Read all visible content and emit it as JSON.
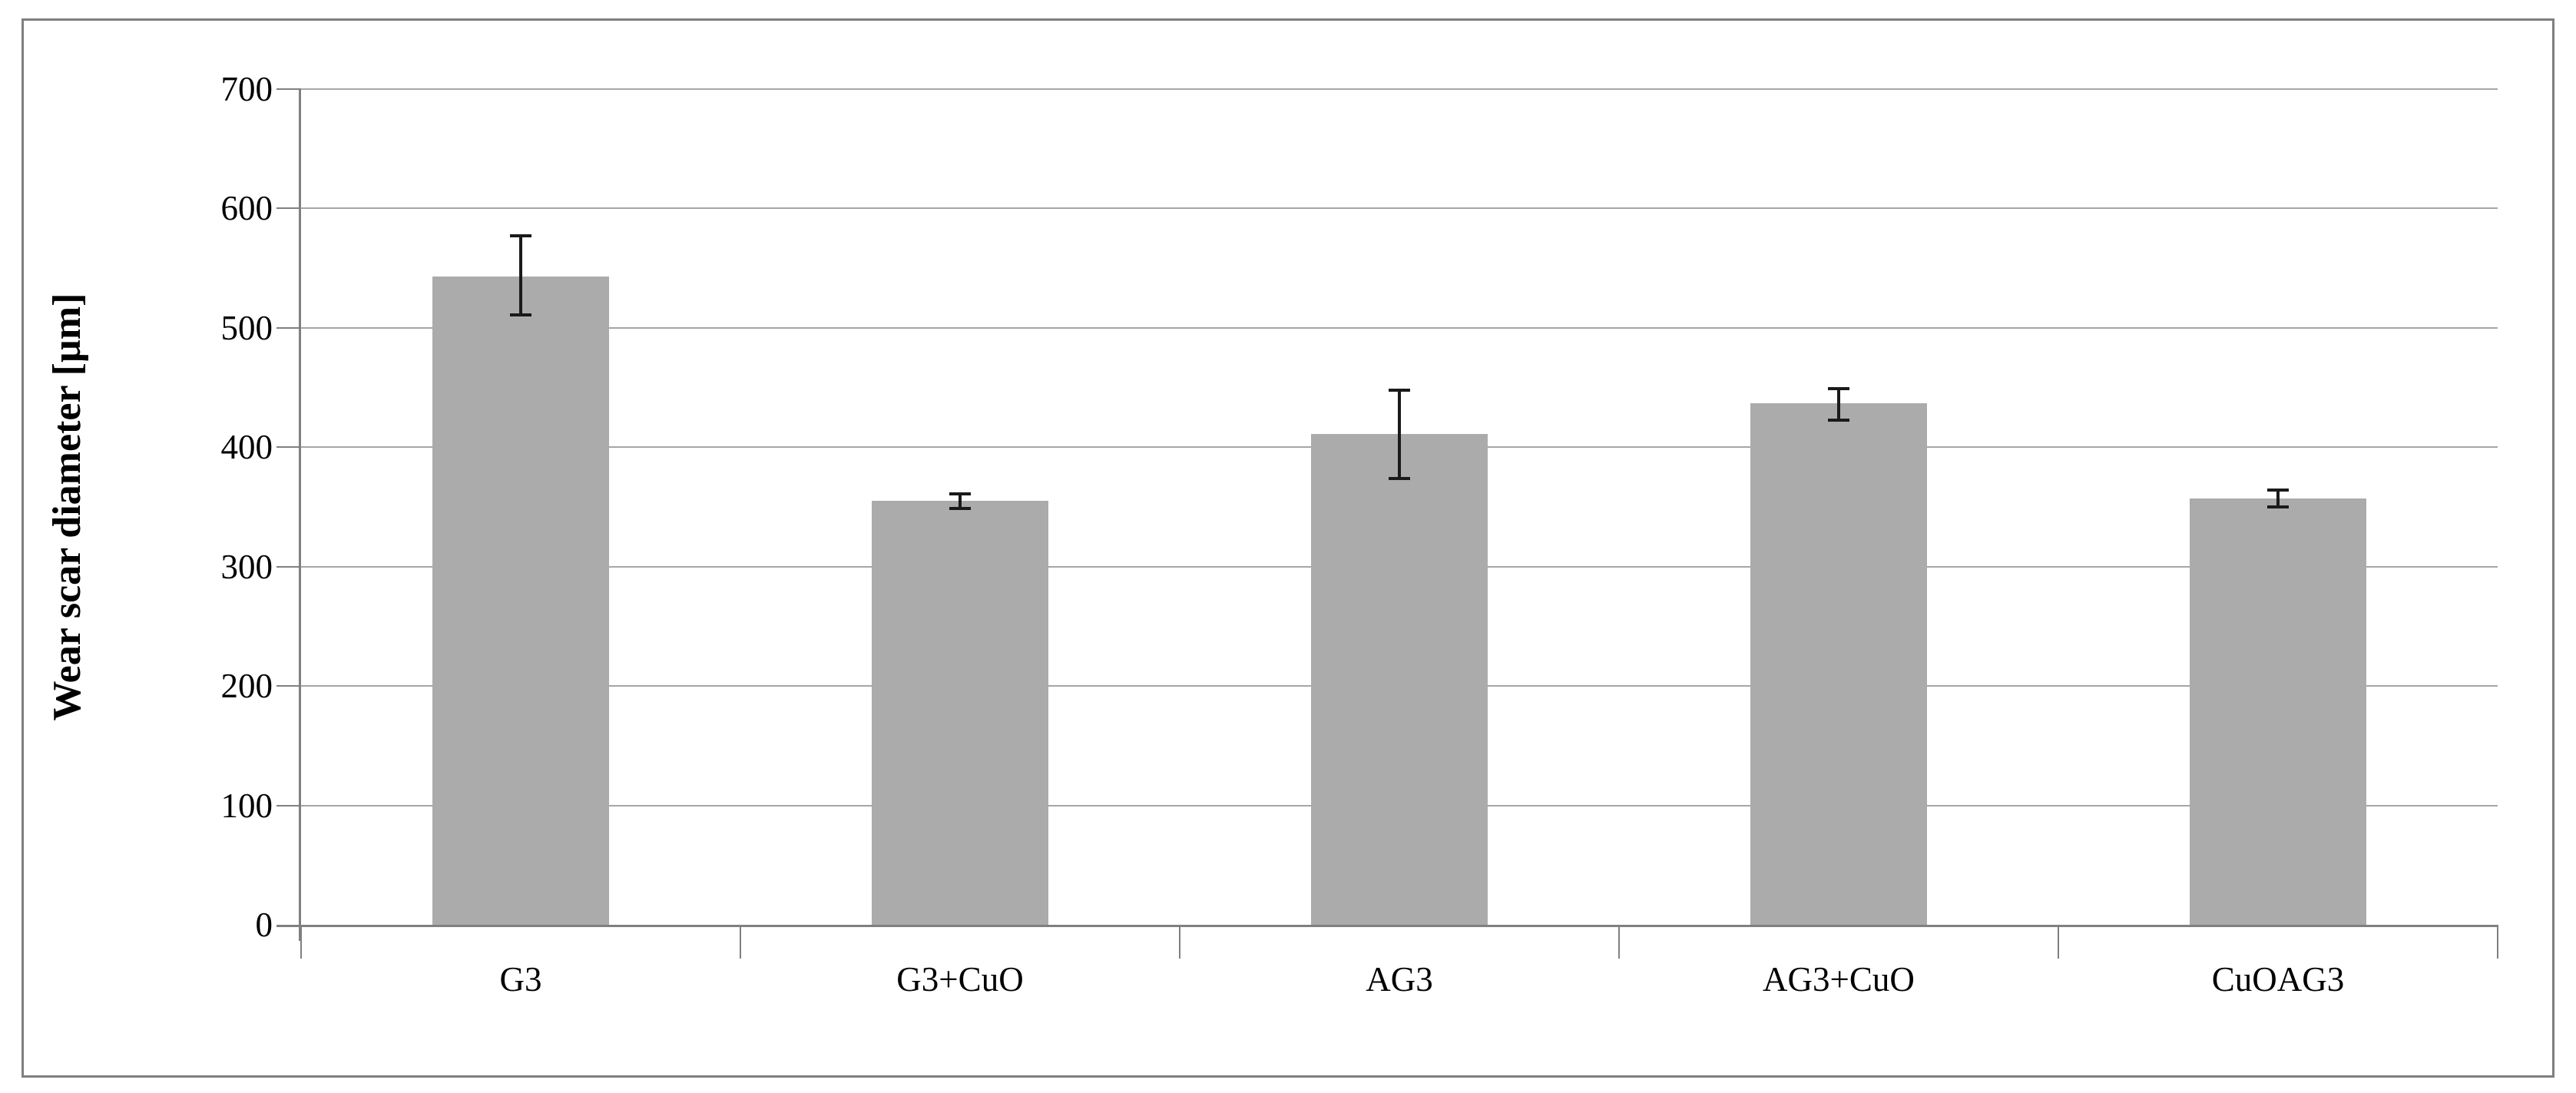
{
  "chart_data": {
    "type": "bar",
    "title": "",
    "ylabel": "Wear scar diameter [µm]",
    "xlabel": "",
    "categories": [
      "G3",
      "G3+CuO",
      "AG3",
      "AG3+CuO",
      "CuOAG3"
    ],
    "values": [
      543,
      355,
      411,
      437,
      357
    ],
    "error_plus": [
      34,
      6,
      37,
      12,
      7
    ],
    "error_minus": [
      32,
      6,
      37,
      14,
      7
    ],
    "ylim": [
      0,
      700
    ],
    "y_tick_step": 100,
    "y_tick_labels": [
      "0",
      "100",
      "200",
      "300",
      "400",
      "500",
      "600",
      "700"
    ],
    "grid": "horizontal",
    "legend": "none",
    "colors": {
      "bar": "#ABABAB",
      "gridline": "#A6A6A6",
      "axis": "#808080",
      "error_bar": "#1A1A1A",
      "border": "#7F7F7F",
      "background": "#FFFFFF",
      "text": "#000000"
    }
  }
}
